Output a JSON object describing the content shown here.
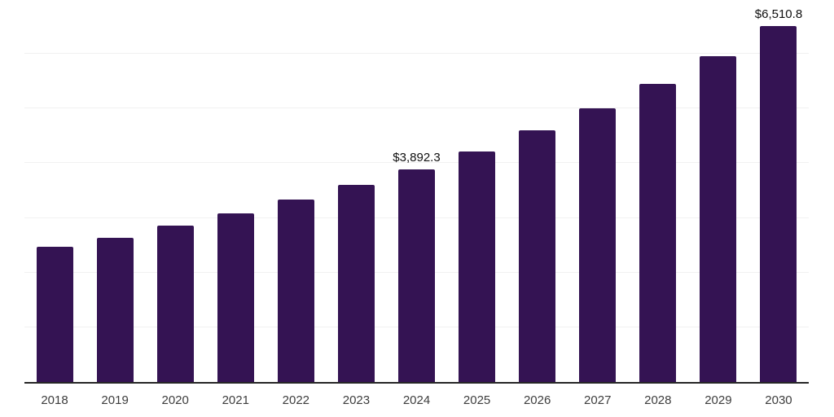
{
  "chart_data": {
    "type": "bar",
    "title": "",
    "xlabel": "",
    "ylabel": "",
    "categories": [
      "2018",
      "2019",
      "2020",
      "2021",
      "2022",
      "2023",
      "2024",
      "2025",
      "2026",
      "2027",
      "2028",
      "2029",
      "2030"
    ],
    "values": [
      2470,
      2640,
      2860,
      3080,
      3330,
      3600,
      3892.3,
      4220,
      4600,
      5010,
      5450,
      5960,
      6510.8
    ],
    "data_labels": [
      {
        "category": "2024",
        "text": "$3,892.3"
      },
      {
        "category": "2030",
        "text": "$6,510.8"
      }
    ],
    "ylim": [
      0,
      7000
    ],
    "gridline_interval": 1000,
    "grid": true,
    "legend": false,
    "y_axis_tick_labels_visible": false,
    "colors": {
      "bar": "#341353",
      "axis_line": "#262626",
      "gridline": "#f1f1f1",
      "x_tick_label": "#3d3d3d",
      "data_label": "#0f0f0f",
      "background": "#ffffff"
    }
  }
}
